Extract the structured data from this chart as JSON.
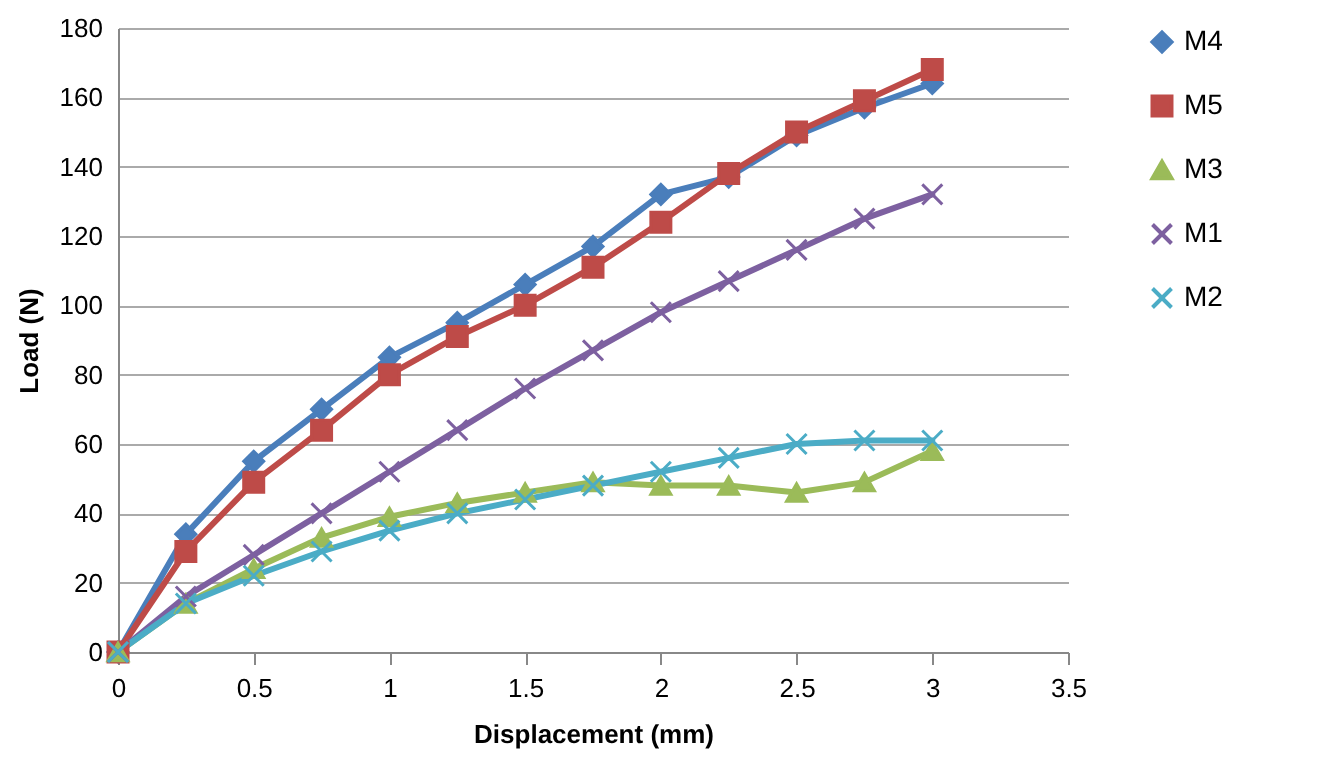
{
  "chart_data": {
    "type": "line",
    "xlabel": "Displacement (mm)",
    "ylabel": "Load (N)",
    "x": [
      0,
      0.25,
      0.5,
      0.75,
      1,
      1.25,
      1.5,
      1.75,
      2,
      2.25,
      2.5,
      2.75,
      3
    ],
    "xlim": [
      0,
      3.5
    ],
    "xticks": [
      0,
      0.5,
      1,
      1.5,
      2,
      2.5,
      3,
      3.5
    ],
    "ylim": [
      0,
      180
    ],
    "yticks": [
      0,
      20,
      40,
      60,
      80,
      100,
      120,
      140,
      160,
      180
    ],
    "grid": "y",
    "legend": "right",
    "line_style": "solid",
    "series": [
      {
        "name": "M4",
        "color": "#4a7ebb",
        "marker": "diamond",
        "values": [
          0,
          34,
          55,
          70,
          85,
          95,
          106,
          117,
          132,
          137,
          149,
          157,
          164
        ]
      },
      {
        "name": "M5",
        "color": "#be4b48",
        "marker": "square",
        "values": [
          0,
          29,
          49,
          64,
          80,
          91,
          100,
          111,
          124,
          138,
          150,
          159,
          168
        ]
      },
      {
        "name": "M3",
        "color": "#9bbb59",
        "marker": "triangle",
        "values": [
          0,
          14,
          24,
          33,
          39,
          43,
          46,
          49,
          48,
          48,
          46,
          49,
          58
        ]
      },
      {
        "name": "M1",
        "color": "#7d60a0",
        "marker": "cross",
        "values": [
          0,
          16,
          28,
          40,
          52,
          64,
          76,
          87,
          98,
          107,
          116,
          125,
          132
        ]
      },
      {
        "name": "M2",
        "color": "#4bacc6",
        "marker": "cross",
        "values": [
          0,
          14,
          22,
          29,
          35,
          40,
          44,
          48,
          52,
          56,
          60,
          61,
          61
        ]
      }
    ]
  }
}
